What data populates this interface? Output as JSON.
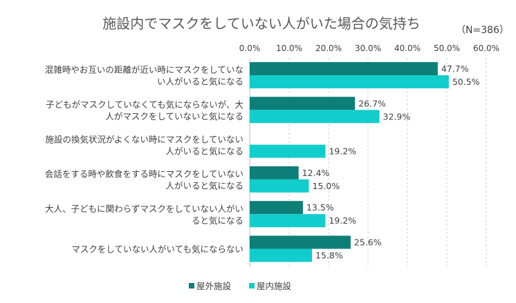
{
  "chart_data": {
    "type": "bar",
    "orientation": "horizontal",
    "title": "施設内でマスクをしていない人がいた場合の気持ち",
    "note": "（N=386）",
    "categories": [
      [
        "混雑時やお互いの距離が近い時にマスクをしていな",
        "い人がいると気になる"
      ],
      [
        "子どもがマスクしていなくても気にならないが、大",
        "人がマスクをしていないと気になる"
      ],
      [
        "施設の換気状況がよくない時にマスクをしていない",
        "人がいると気になる"
      ],
      [
        "会話をする時や飲食をする時にマスクをしていない",
        "人がいると気になる"
      ],
      [
        "大人、子どもに関わらずマスクをしていない人がい",
        "ると気になる"
      ],
      [
        "マスクをしていない人がいても気にならない"
      ]
    ],
    "series": [
      {
        "name": "屋外施設",
        "color": "#0e7f78",
        "values": [
          47.7,
          26.7,
          null,
          12.4,
          13.5,
          25.6
        ]
      },
      {
        "name": "屋内施設",
        "color": "#11cdcb",
        "values": [
          50.5,
          32.9,
          19.2,
          15.0,
          19.2,
          15.8
        ]
      }
    ],
    "xlim": [
      0,
      60
    ],
    "ticks": [
      "0.0%",
      "10.0%",
      "20.0%",
      "30.0%",
      "40.0%",
      "50.0%",
      "60.0%"
    ],
    "value_suffix": "%",
    "grid": "vertical dashed",
    "legend_position": "bottom"
  }
}
